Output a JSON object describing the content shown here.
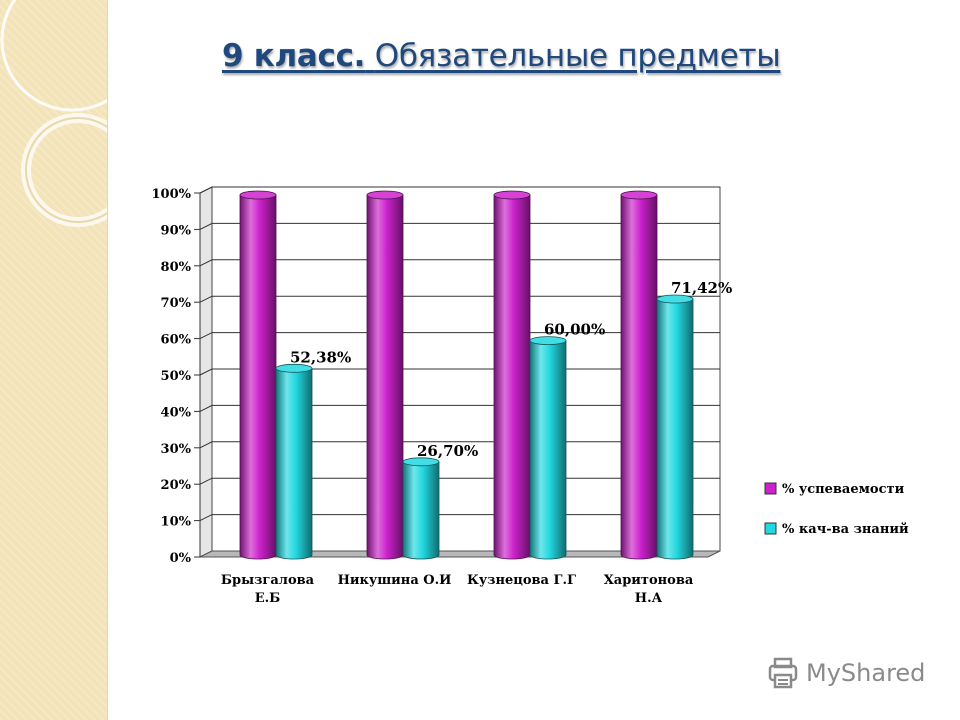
{
  "title": {
    "part1": "9 класс.",
    "part2": "Обязательные предметы"
  },
  "watermark": {
    "text": "MyShared",
    "icon": "printer-icon"
  },
  "colors": {
    "series1": "#cc22cc",
    "series2": "#22d8e0",
    "side_panel": "#f3e3b8"
  },
  "chart_data": {
    "type": "bar",
    "categories": [
      [
        "Брызгалова",
        "Е.Б"
      ],
      [
        "Никушина О.И"
      ],
      [
        "Кузнецова Г.Г"
      ],
      [
        "Харитонова",
        "Н.А"
      ]
    ],
    "series": [
      {
        "name": "% успеваемости",
        "values": [
          100,
          100,
          100,
          100
        ],
        "color": "#cc22cc",
        "labels": [
          "",
          "",
          "",
          ""
        ]
      },
      {
        "name": "% кач-ва знаний",
        "values": [
          52.38,
          26.7,
          60.0,
          71.42
        ],
        "color": "#22d8e0",
        "labels": [
          "52,38%",
          "26,70%",
          "60,00%",
          "71,42%"
        ]
      }
    ],
    "ylim": [
      0,
      100
    ],
    "yticks": [
      "0%",
      "10%",
      "20%",
      "30%",
      "40%",
      "50%",
      "60%",
      "70%",
      "80%",
      "90%",
      "100%"
    ],
    "grid": true,
    "legend": "right",
    "style": "3d-cylinder"
  }
}
